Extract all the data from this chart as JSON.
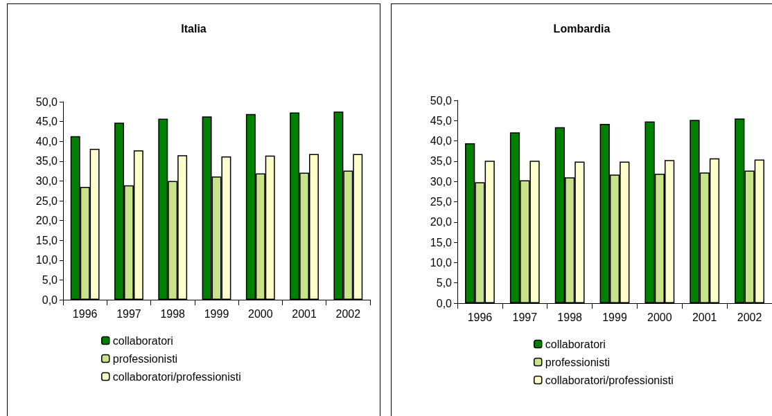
{
  "chart_data": [
    {
      "type": "bar",
      "title": "Italia",
      "categories": [
        "1996",
        "1997",
        "1998",
        "1999",
        "2000",
        "2001",
        "2002"
      ],
      "series": [
        {
          "name": "collaboratori",
          "color": "#008000",
          "values": [
            41.3,
            44.7,
            45.7,
            46.3,
            46.9,
            47.3,
            47.5
          ]
        },
        {
          "name": "professionisti",
          "color": "#c8e38a",
          "values": [
            28.5,
            28.9,
            30.0,
            31.1,
            31.9,
            32.1,
            32.6
          ]
        },
        {
          "name": "collaboratori/professionisti",
          "color": "#ffffcc",
          "values": [
            38.1,
            37.7,
            36.5,
            36.2,
            36.4,
            36.8,
            36.8
          ]
        }
      ],
      "ylim": [
        0,
        50
      ],
      "yticks": [
        {
          "value": 0,
          "label": "0,0"
        },
        {
          "value": 5,
          "label": "5,0"
        },
        {
          "value": 10,
          "label": "10,0"
        },
        {
          "value": 15,
          "label": "15,0"
        },
        {
          "value": 20,
          "label": "20,0"
        },
        {
          "value": 25,
          "label": "25,0"
        },
        {
          "value": 30,
          "label": "30,0"
        },
        {
          "value": 35,
          "label": "35,0"
        },
        {
          "value": 40,
          "label": "40,0"
        },
        {
          "value": 45,
          "label": "45,0"
        },
        {
          "value": 50,
          "label": "50,0"
        }
      ],
      "grid": false,
      "legend": "bottom"
    },
    {
      "type": "bar",
      "title": "Lombardia",
      "categories": [
        "1996",
        "1997",
        "1998",
        "1999",
        "2000",
        "2001",
        "2002"
      ],
      "series": [
        {
          "name": "collaboratori",
          "color": "#008000",
          "values": [
            39.4,
            42.1,
            43.4,
            44.2,
            44.8,
            45.2,
            45.5
          ]
        },
        {
          "name": "professionisti",
          "color": "#c8e38a",
          "values": [
            29.8,
            30.3,
            31.0,
            31.7,
            31.9,
            32.2,
            32.7
          ]
        },
        {
          "name": "collaboratori/professionisti",
          "color": "#ffffcc",
          "values": [
            35.1,
            35.1,
            34.9,
            34.9,
            35.3,
            35.7,
            35.4
          ]
        }
      ],
      "ylim": [
        0,
        50
      ],
      "yticks": [
        {
          "value": 0,
          "label": "0,0"
        },
        {
          "value": 5,
          "label": "5,0"
        },
        {
          "value": 10,
          "label": "10,0"
        },
        {
          "value": 15,
          "label": "15,0"
        },
        {
          "value": 20,
          "label": "20,0"
        },
        {
          "value": 25,
          "label": "25,0"
        },
        {
          "value": 30,
          "label": "30,0"
        },
        {
          "value": 35,
          "label": "35,0"
        },
        {
          "value": 40,
          "label": "40,0"
        },
        {
          "value": 45,
          "label": "45,0"
        },
        {
          "value": 50,
          "label": "50,0"
        }
      ],
      "grid": false,
      "legend": "bottom"
    }
  ]
}
